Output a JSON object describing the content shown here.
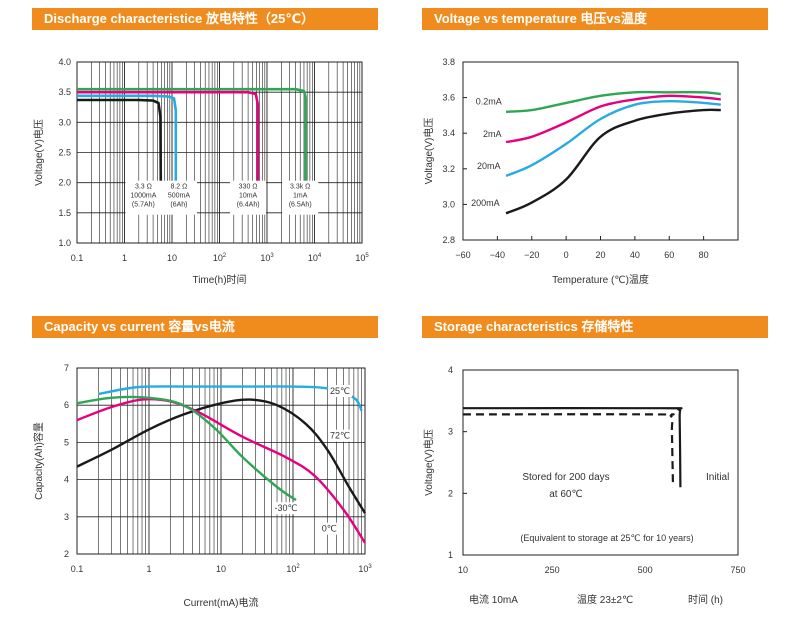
{
  "chart_data": [
    {
      "id": "discharge",
      "type": "line",
      "title": "Discharge characteristice 放电特性（25℃）",
      "xlabel": "Time(h)时间",
      "ylabel": "Voltage(V)电压",
      "x_scale": "log",
      "xlim": [
        0.1,
        100000
      ],
      "ylim": [
        1.0,
        4.0
      ],
      "x_ticks": [
        {
          "v": 0.1,
          "label": "0.1",
          "base": "",
          "exp": ""
        },
        {
          "v": 1,
          "label": "1",
          "base": "",
          "exp": ""
        },
        {
          "v": 10,
          "label": "10",
          "base": "",
          "exp": ""
        },
        {
          "v": 100,
          "label": "",
          "base": "10",
          "exp": "2"
        },
        {
          "v": 1000,
          "label": "",
          "base": "10",
          "exp": "3"
        },
        {
          "v": 10000,
          "label": "",
          "base": "10",
          "exp": "4"
        },
        {
          "v": 100000,
          "label": "",
          "base": "10",
          "exp": "5"
        }
      ],
      "y_ticks": [
        "1.0",
        "1.5",
        "2.0",
        "2.5",
        "3.0",
        "3.5",
        "4.0"
      ],
      "grid": true,
      "series": [
        {
          "color": "#1a1a1a",
          "x": [
            0.1,
            2,
            4,
            5.2,
            5.7,
            5.8
          ],
          "y": [
            3.37,
            3.37,
            3.36,
            3.32,
            3.1,
            2.0
          ],
          "annotation": {
            "lines": [
              "3.3 Ω",
              "1000mA",
              "(5.7Ah)"
            ],
            "x": 2.5,
            "y": 1.9
          }
        },
        {
          "color": "#29abe2",
          "x": [
            0.1,
            4,
            8,
            11,
            12,
            12
          ],
          "y": [
            3.44,
            3.44,
            3.43,
            3.4,
            3.2,
            2.0
          ],
          "annotation": {
            "lines": [
              "8.2 Ω",
              "500mA",
              "(6Ah)"
            ],
            "x": 14,
            "y": 1.9
          }
        },
        {
          "color": "#e6007e",
          "x": [
            0.1,
            100,
            400,
            580,
            640,
            640
          ],
          "y": [
            3.5,
            3.5,
            3.5,
            3.47,
            3.3,
            2.0
          ],
          "annotation": {
            "lines": [
              "330 Ω",
              "10mA",
              "(6.4Ah)"
            ],
            "x": 400,
            "y": 1.9
          }
        },
        {
          "color": "#2fa655",
          "x": [
            0.1,
            1000,
            4000,
            6000,
            6500,
            6500
          ],
          "y": [
            3.55,
            3.55,
            3.55,
            3.52,
            3.4,
            2.0
          ],
          "annotation": {
            "lines": [
              "3.3k Ω",
              "1mA",
              "(6.5Ah)"
            ],
            "x": 5000,
            "y": 1.9
          }
        }
      ]
    },
    {
      "id": "voltage_temp",
      "type": "line",
      "title": "Voltage vs temperature 电压vs温度",
      "xlabel": "Temperature (℃)温度",
      "ylabel": "Voltage(V)电压",
      "xlim": [
        -60,
        100
      ],
      "ylim": [
        2.8,
        3.8
      ],
      "x_ticks": [
        -60,
        -40,
        -20,
        0,
        20,
        40,
        60,
        80
      ],
      "y_ticks": [
        "2.8",
        "3.0",
        "3.2",
        "3.4",
        "3.6",
        "3.8"
      ],
      "grid": false,
      "series": [
        {
          "name": "0.2mA",
          "color": "#2fa655",
          "x": [
            -35,
            -20,
            0,
            20,
            40,
            60,
            80,
            90
          ],
          "y": [
            3.52,
            3.53,
            3.57,
            3.61,
            3.63,
            3.63,
            3.63,
            3.62
          ],
          "label_at": [
            -45,
            3.56
          ]
        },
        {
          "name": "2mA",
          "color": "#e6007e",
          "x": [
            -35,
            -20,
            0,
            20,
            40,
            60,
            80,
            90
          ],
          "y": [
            3.35,
            3.38,
            3.46,
            3.55,
            3.59,
            3.61,
            3.6,
            3.59
          ],
          "label_at": [
            -43,
            3.38
          ]
        },
        {
          "name": "20mA",
          "color": "#29abe2",
          "x": [
            -35,
            -20,
            0,
            20,
            40,
            60,
            80,
            90
          ],
          "y": [
            3.16,
            3.22,
            3.34,
            3.48,
            3.56,
            3.58,
            3.57,
            3.56
          ],
          "label_at": [
            -45,
            3.2
          ]
        },
        {
          "name": "200mA",
          "color": "#1a1a1a",
          "x": [
            -35,
            -20,
            0,
            20,
            40,
            60,
            80,
            90
          ],
          "y": [
            2.95,
            3.01,
            3.14,
            3.38,
            3.47,
            3.51,
            3.53,
            3.53
          ],
          "label_at": [
            -47,
            2.99
          ]
        }
      ]
    },
    {
      "id": "capacity_current",
      "type": "line",
      "title": "Capacity vs current 容量vs电流",
      "xlabel": "Current(mA)电流",
      "ylabel": "Capacity(Ah)容量",
      "x_scale": "log",
      "xlim": [
        0.1,
        1000
      ],
      "ylim": [
        2,
        7
      ],
      "x_ticks": [
        {
          "v": 0.1,
          "label": "0.1",
          "base": "",
          "exp": ""
        },
        {
          "v": 1,
          "label": "1",
          "base": "",
          "exp": ""
        },
        {
          "v": 10,
          "label": "10",
          "base": "",
          "exp": ""
        },
        {
          "v": 100,
          "label": "",
          "base": "10",
          "exp": "2"
        },
        {
          "v": 1000,
          "label": "",
          "base": "10",
          "exp": "3"
        }
      ],
      "y_ticks": [
        "2",
        "3",
        "4",
        "5",
        "6",
        "7"
      ],
      "grid": true,
      "series": [
        {
          "name": "25℃",
          "color": "#29abe2",
          "x": [
            0.2,
            0.5,
            1,
            5,
            20,
            100,
            300,
            700,
            900
          ],
          "y": [
            6.3,
            6.45,
            6.5,
            6.5,
            6.5,
            6.5,
            6.45,
            6.2,
            5.85
          ],
          "label_at": [
            450,
            6.3
          ]
        },
        {
          "name": "72℃",
          "color": "#1a1a1a",
          "x": [
            0.1,
            0.3,
            1,
            3,
            10,
            25,
            60,
            150,
            300,
            600,
            1000
          ],
          "y": [
            4.35,
            4.8,
            5.35,
            5.75,
            6.05,
            6.15,
            6.0,
            5.5,
            4.8,
            3.8,
            3.1
          ],
          "label_at": [
            450,
            5.1
          ]
        },
        {
          "name": "0℃",
          "color": "#e6007e",
          "x": [
            0.1,
            0.3,
            0.8,
            2,
            5,
            20,
            80,
            200,
            500,
            1000
          ],
          "y": [
            5.6,
            5.95,
            6.15,
            6.1,
            5.8,
            5.15,
            4.6,
            4.1,
            3.2,
            2.3
          ],
          "label_at": [
            320,
            2.6
          ]
        },
        {
          "name": "-30℃",
          "color": "#2fa655",
          "x": [
            0.1,
            0.3,
            1,
            3,
            8,
            20,
            60,
            110
          ],
          "y": [
            6.05,
            6.2,
            6.2,
            6.0,
            5.4,
            4.6,
            3.8,
            3.45
          ],
          "label_at": [
            80,
            3.15
          ]
        }
      ]
    },
    {
      "id": "storage",
      "type": "line",
      "title": "Storage characteristics 存储特性",
      "ylabel": "Voltage(V)电压",
      "xlim": [
        10,
        750
      ],
      "ylim": [
        1,
        4
      ],
      "x_ticks": [
        "10",
        "250",
        "500",
        "750"
      ],
      "y_ticks": [
        "1",
        "2",
        "3",
        "4"
      ],
      "grid": false,
      "series": [
        {
          "name": "Initial",
          "color": "#1a1a1a",
          "style": "solid",
          "x": [
            10,
            540,
            590,
            593,
            595
          ],
          "y": [
            3.38,
            3.38,
            3.36,
            3.2,
            2.1
          ]
        },
        {
          "name": "Stored for 200 days at 60℃",
          "color": "#1a1a1a",
          "style": "dashed",
          "x": [
            10,
            520,
            570,
            572,
            575
          ],
          "y": [
            3.28,
            3.28,
            3.25,
            3.0,
            2.1
          ]
        }
      ],
      "annotations": {
        "initial": "Initial",
        "stored_line1": "Stored for 200 days",
        "stored_line2": "at 60℃",
        "equivalent": "(Equivalent to storage at 25℃ for 10 years)"
      },
      "footer": {
        "current": "电流 10mA",
        "temperature": "温度 23±2℃",
        "time": "时间 (h)"
      }
    }
  ]
}
